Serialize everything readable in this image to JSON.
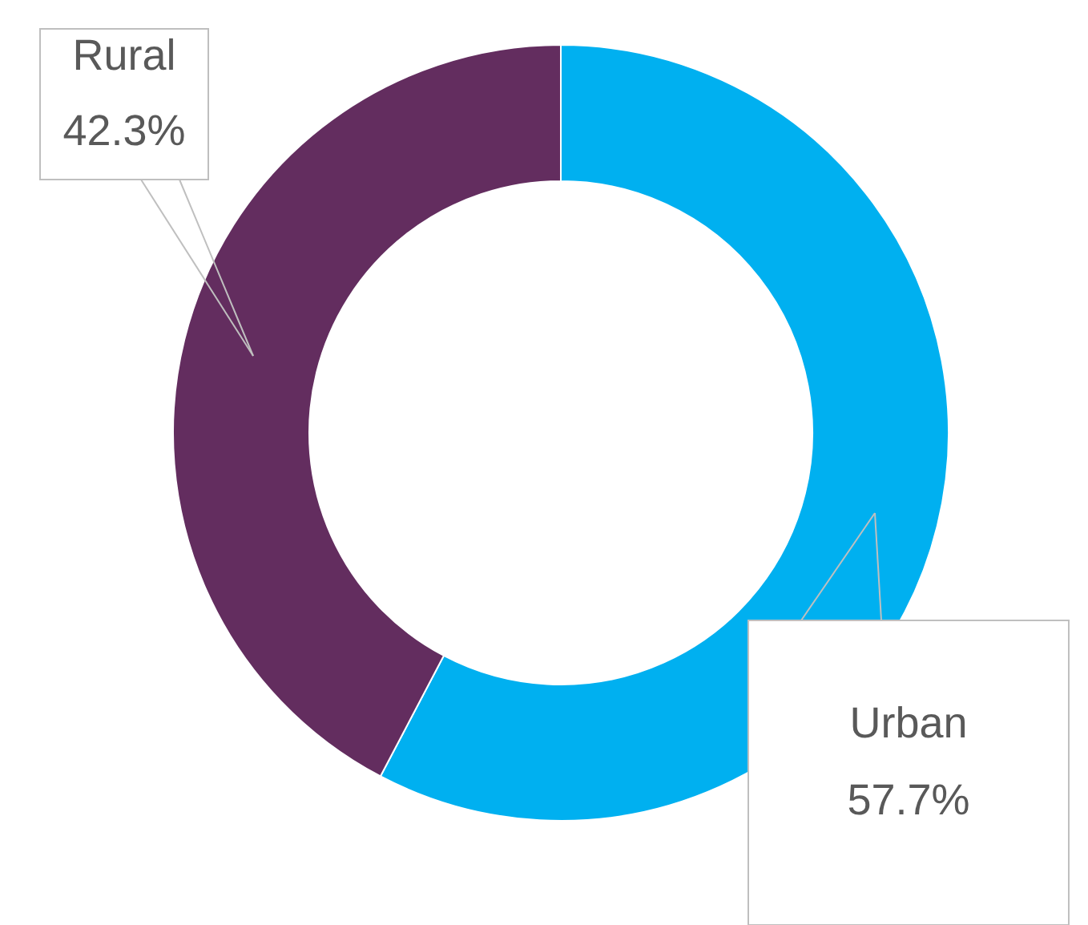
{
  "chart_data": {
    "type": "donut",
    "categories": [
      "Urban",
      "Rural"
    ],
    "values": [
      57.7,
      42.3
    ],
    "colors": [
      "#00b0f0",
      "#632d5f"
    ],
    "value_labels": [
      "57.7%",
      "42.3%"
    ]
  }
}
